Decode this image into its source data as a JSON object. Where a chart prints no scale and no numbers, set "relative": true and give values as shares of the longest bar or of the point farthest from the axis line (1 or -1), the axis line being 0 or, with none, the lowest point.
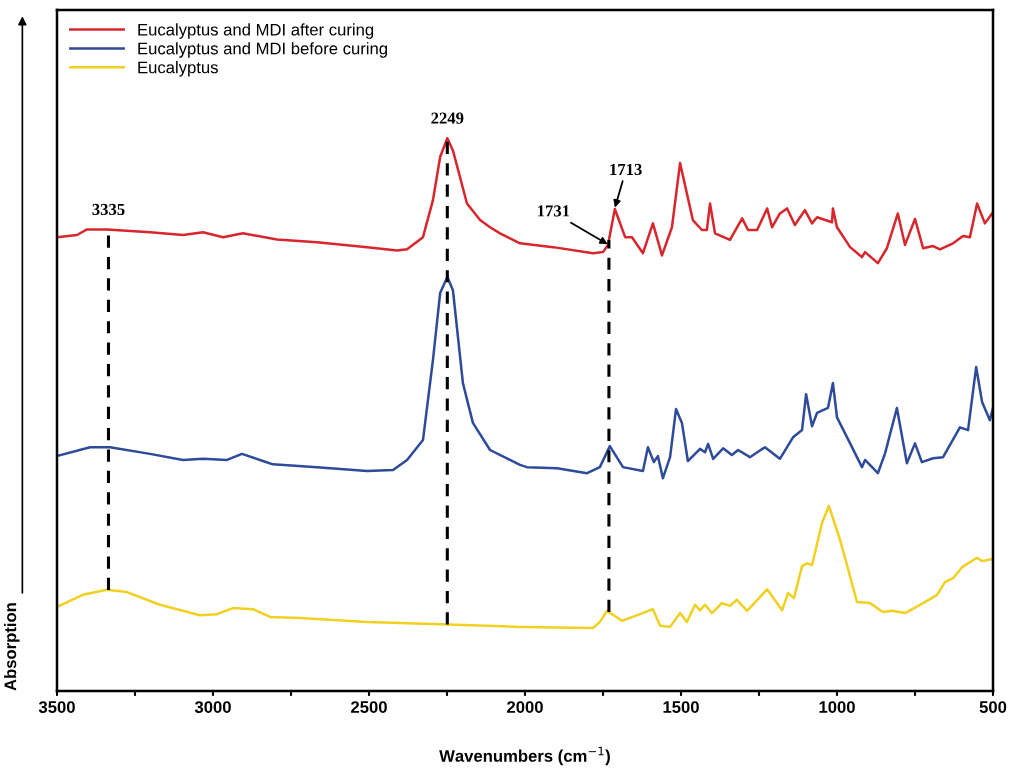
{
  "chart_data": {
    "type": "line",
    "relative": true,
    "xlabel": "Wavenumbers (cm$^{−1}$)",
    "ylabel": "Absorption",
    "legend": "top left",
    "grid": false,
    "line_style": "solid",
    "xlim": [
      3500,
      500
    ],
    "xticks": [
      3500,
      {
        "value": 3250,
        "label": null
      },
      3000,
      {
        "value": 2750,
        "label": null
      },
      2500,
      {
        "value": 2250,
        "label": null
      },
      2000,
      {
        "value": 1750,
        "label": null
      },
      1500,
      {
        "value": 1250,
        "label": null
      },
      1000,
      {
        "value": 750,
        "label": null
      },
      500
    ],
    "series": [
      {
        "name": "Eucalyptus and MDI after curing",
        "color": "#d7262c",
        "x": [
          3500,
          3436,
          3404,
          3340,
          3202,
          3096,
          3032,
          2968,
          2904,
          2795,
          2667,
          2506,
          2410,
          2378,
          2327,
          2295,
          2272,
          2249,
          2231,
          2186,
          2144,
          2112,
          2080,
          2016,
          1910,
          1782,
          1750,
          1734,
          1712,
          1679,
          1657,
          1622,
          1590,
          1561,
          1529,
          1503,
          1462,
          1433,
          1417,
          1407,
          1391,
          1343,
          1304,
          1285,
          1256,
          1224,
          1208,
          1183,
          1160,
          1135,
          1103,
          1080,
          1064,
          1016,
          1013,
          1000,
          958,
          920,
          910,
          869,
          840,
          805,
          782,
          750,
          724,
          692,
          670,
          628,
          596,
          574,
          551,
          526,
          500
        ],
        "values": [
          0.821,
          0.825,
          0.835,
          0.835,
          0.83,
          0.825,
          0.83,
          0.821,
          0.828,
          0.817,
          0.812,
          0.803,
          0.797,
          0.799,
          0.821,
          0.888,
          0.966,
          1.0,
          0.978,
          0.882,
          0.852,
          0.839,
          0.828,
          0.81,
          0.803,
          0.792,
          0.794,
          0.807,
          0.872,
          0.821,
          0.821,
          0.792,
          0.846,
          0.788,
          0.839,
          0.955,
          0.852,
          0.834,
          0.834,
          0.882,
          0.828,
          0.816,
          0.855,
          0.834,
          0.834,
          0.873,
          0.839,
          0.864,
          0.873,
          0.843,
          0.87,
          0.846,
          0.857,
          0.848,
          0.873,
          0.839,
          0.803,
          0.785,
          0.794,
          0.774,
          0.801,
          0.864,
          0.807,
          0.854,
          0.801,
          0.805,
          0.799,
          0.81,
          0.823,
          0.821,
          0.882,
          0.846,
          0.866
        ]
      },
      {
        "name": "Eucalyptus and MDI before curing",
        "color": "#2e4a9a",
        "x": [
          3500,
          3394,
          3330,
          3202,
          3096,
          3032,
          2955,
          2907,
          2840,
          2808,
          2667,
          2506,
          2423,
          2378,
          2327,
          2295,
          2272,
          2249,
          2231,
          2199,
          2167,
          2112,
          2058,
          2016,
          1994,
          1897,
          1801,
          1760,
          1728,
          1686,
          1622,
          1606,
          1587,
          1574,
          1558,
          1535,
          1516,
          1497,
          1478,
          1439,
          1423,
          1413,
          1397,
          1365,
          1337,
          1317,
          1279,
          1231,
          1183,
          1141,
          1112,
          1099,
          1080,
          1064,
          1029,
          1013,
          1000,
          958,
          920,
          910,
          869,
          846,
          808,
          776,
          750,
          728,
          692,
          660,
          606,
          580,
          554,
          535,
          510,
          500
        ],
        "values": [
          0.425,
          0.441,
          0.441,
          0.429,
          0.418,
          0.42,
          0.418,
          0.429,
          0.416,
          0.41,
          0.405,
          0.398,
          0.4,
          0.418,
          0.454,
          0.599,
          0.72,
          0.749,
          0.725,
          0.557,
          0.485,
          0.436,
          0.421,
          0.409,
          0.405,
          0.403,
          0.394,
          0.405,
          0.443,
          0.405,
          0.398,
          0.441,
          0.414,
          0.425,
          0.385,
          0.423,
          0.51,
          0.485,
          0.416,
          0.438,
          0.432,
          0.447,
          0.42,
          0.439,
          0.427,
          0.436,
          0.423,
          0.441,
          0.42,
          0.459,
          0.472,
          0.537,
          0.479,
          0.503,
          0.512,
          0.557,
          0.495,
          0.448,
          0.405,
          0.418,
          0.394,
          0.43,
          0.512,
          0.412,
          0.448,
          0.414,
          0.421,
          0.423,
          0.477,
          0.472,
          0.586,
          0.523,
          0.49,
          0.512
        ]
      },
      {
        "name": "Eucalyptus",
        "color": "#f0d020",
        "x": [
          3500,
          3417,
          3340,
          3276,
          3170,
          3042,
          2987,
          2936,
          2872,
          2817,
          2721,
          2506,
          2295,
          2016,
          1782,
          1760,
          1737,
          1689,
          1631,
          1590,
          1567,
          1535,
          1503,
          1481,
          1455,
          1439,
          1423,
          1401,
          1369,
          1343,
          1321,
          1288,
          1224,
          1176,
          1157,
          1138,
          1112,
          1096,
          1080,
          1048,
          1026,
          990,
          968,
          936,
          894,
          853,
          824,
          782,
          724,
          679,
          654,
          628,
          599,
          551,
          535,
          500
        ],
        "values": [
          0.152,
          0.174,
          0.183,
          0.179,
          0.156,
          0.137,
          0.139,
          0.15,
          0.148,
          0.134,
          0.132,
          0.125,
          0.121,
          0.116,
          0.114,
          0.125,
          0.145,
          0.127,
          0.139,
          0.148,
          0.118,
          0.116,
          0.141,
          0.125,
          0.156,
          0.146,
          0.156,
          0.141,
          0.159,
          0.154,
          0.165,
          0.145,
          0.184,
          0.146,
          0.177,
          0.168,
          0.226,
          0.231,
          0.228,
          0.304,
          0.335,
          0.273,
          0.228,
          0.161,
          0.159,
          0.143,
          0.145,
          0.141,
          0.159,
          0.174,
          0.197,
          0.204,
          0.224,
          0.241,
          0.235,
          0.239
        ]
      }
    ],
    "ref_lines": [
      {
        "axis": "x",
        "value": 3335,
        "label": "3335",
        "color": "#000000",
        "line_style": "dashed"
      },
      {
        "axis": "x",
        "value": 2249,
        "label": "2249",
        "color": "#000000",
        "line_style": "dashed"
      },
      {
        "axis": "x",
        "value": 1731,
        "color": "#000000",
        "line_style": "dashed"
      }
    ],
    "annotations": [
      {
        "text": "1713",
        "x": 1713,
        "y": 0.872
      },
      {
        "text": "1731",
        "x": 1731,
        "y": 0.807
      }
    ]
  }
}
